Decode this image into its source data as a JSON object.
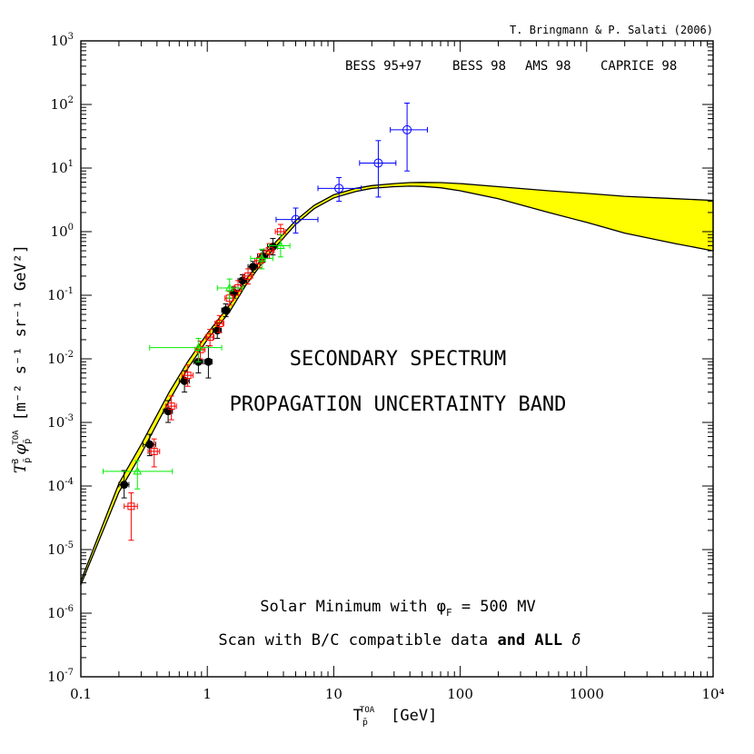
{
  "chart_data": {
    "type": "scatter",
    "credit": "T. Bringmann & P. Salati (2006)",
    "annotations": {
      "line1": "SECONDARY SPECTRUM",
      "line2": "PROPAGATION UNCERTAINTY BAND",
      "note1": "Solar Minimum with φ",
      "note1_sub": "F",
      "note1_rest": " = 500 MV",
      "note2": "Scan with B/C compatible data ",
      "note2_bold": "and ALL",
      "note2_end": " δ"
    },
    "xlabel": {
      "main": "T",
      "sub": "p̄",
      "sup": "TOA",
      "unit": "[GeV]"
    },
    "ylabel": {
      "main": "T",
      "sub": "p̄",
      "sup": "3",
      "phi": "φ",
      "phi_sub": "p̄",
      "phi_sup": "TOA",
      "unit": "[m⁻² s⁻¹ sr⁻¹ GeV²]"
    },
    "x_scale": "log",
    "y_scale": "log",
    "xlim": [
      0.1,
      10000
    ],
    "ylim": [
      1e-07,
      1000
    ],
    "x_tick_labels": [
      "0.1",
      "1",
      "10",
      "100",
      "1000",
      "10⁴"
    ],
    "x_tick_values": [
      0.1,
      1,
      10,
      100,
      1000,
      10000
    ],
    "y_tick_values": [
      1e-07,
      1e-06,
      1e-05,
      0.0001,
      0.001,
      0.01,
      0.1,
      1,
      10,
      100,
      1000
    ],
    "y_tick_mantissa": "10",
    "y_tick_exponents": [
      "-7",
      "-6",
      "-5",
      "-4",
      "-3",
      "-2",
      "-1",
      "0",
      "1",
      "2",
      "3"
    ],
    "legend_position": "top-right",
    "series": [
      {
        "name": "BESS 95+97",
        "color": "#000000",
        "marker": "filled-circle",
        "points": [
          {
            "x": 0.22,
            "y": 0.000105,
            "xerr": [
              0.02,
              0.02
            ],
            "yerr": [
              4e-05,
              7e-05
            ]
          },
          {
            "x": 0.35,
            "y": 0.00045,
            "xerr": [
              0.04,
              0.04
            ],
            "yerr": [
              0.00015,
              0.0002
            ]
          },
          {
            "x": 0.49,
            "y": 0.0015,
            "xerr": [
              0.04,
              0.04
            ],
            "yerr": [
              0.0005,
              0.0007
            ]
          },
          {
            "x": 0.66,
            "y": 0.0045,
            "xerr": [
              0.06,
              0.06
            ],
            "yerr": [
              0.0015,
              0.002
            ]
          },
          {
            "x": 0.85,
            "y": 0.009,
            "xerr": [
              0.07,
              0.07
            ],
            "yerr": [
              0.003,
              0.005
            ]
          },
          {
            "x": 1.02,
            "y": 0.009,
            "xerr": [
              0.07,
              0.07
            ],
            "yerr": [
              0.004,
              0.007
            ]
          },
          {
            "x": 1.2,
            "y": 0.028,
            "xerr": [
              0.09,
              0.09
            ],
            "yerr": [
              0.007,
              0.009
            ]
          },
          {
            "x": 1.4,
            "y": 0.058,
            "xerr": [
              0.1,
              0.1
            ],
            "yerr": [
              0.012,
              0.015
            ]
          },
          {
            "x": 1.62,
            "y": 0.11,
            "xerr": [
              0.12,
              0.12
            ],
            "yerr": [
              0.02,
              0.025
            ]
          },
          {
            "x": 1.9,
            "y": 0.17,
            "xerr": [
              0.15,
              0.15
            ],
            "yerr": [
              0.03,
              0.04
            ]
          },
          {
            "x": 2.3,
            "y": 0.28,
            "xerr": [
              0.2,
              0.2
            ],
            "yerr": [
              0.05,
              0.06
            ]
          },
          {
            "x": 2.75,
            "y": 0.41,
            "xerr": [
              0.25,
              0.25
            ],
            "yerr": [
              0.08,
              0.1
            ]
          },
          {
            "x": 3.3,
            "y": 0.58,
            "xerr": [
              0.3,
              0.3
            ],
            "yerr": [
              0.15,
              0.2
            ]
          }
        ]
      },
      {
        "name": "BESS 98",
        "color": "#ff0000",
        "marker": "open-square",
        "points": [
          {
            "x": 0.25,
            "y": 4.8e-05,
            "xerr": [
              0.03,
              0.03
            ],
            "yerr": [
              3.4e-05,
              3e-05
            ]
          },
          {
            "x": 0.38,
            "y": 0.00035,
            "xerr": [
              0.04,
              0.04
            ],
            "yerr": [
              0.00015,
              0.0002
            ]
          },
          {
            "x": 0.52,
            "y": 0.0018,
            "xerr": [
              0.05,
              0.05
            ],
            "yerr": [
              0.0007,
              0.0008
            ]
          },
          {
            "x": 0.7,
            "y": 0.0055,
            "xerr": [
              0.07,
              0.07
            ],
            "yerr": [
              0.0018,
              0.0025
            ]
          },
          {
            "x": 0.88,
            "y": 0.014,
            "xerr": [
              0.08,
              0.08
            ],
            "yerr": [
              0.004,
              0.005
            ]
          },
          {
            "x": 1.05,
            "y": 0.022,
            "xerr": [
              0.08,
              0.08
            ],
            "yerr": [
              0.006,
              0.007
            ]
          },
          {
            "x": 1.25,
            "y": 0.036,
            "xerr": [
              0.1,
              0.1
            ],
            "yerr": [
              0.01,
              0.012
            ]
          },
          {
            "x": 1.5,
            "y": 0.09,
            "xerr": [
              0.12,
              0.12
            ],
            "yerr": [
              0.02,
              0.025
            ]
          },
          {
            "x": 1.75,
            "y": 0.13,
            "xerr": [
              0.14,
              0.14
            ],
            "yerr": [
              0.03,
              0.04
            ]
          },
          {
            "x": 2.1,
            "y": 0.2,
            "xerr": [
              0.18,
              0.18
            ],
            "yerr": [
              0.05,
              0.06
            ]
          },
          {
            "x": 2.6,
            "y": 0.35,
            "xerr": [
              0.22,
              0.22
            ],
            "yerr": [
              0.08,
              0.1
            ]
          },
          {
            "x": 3.1,
            "y": 0.5,
            "xerr": [
              0.28,
              0.28
            ],
            "yerr": [
              0.12,
              0.15
            ]
          },
          {
            "x": 3.8,
            "y": 1.0,
            "xerr": [
              0.35,
              0.35
            ],
            "yerr": [
              0.25,
              0.3
            ]
          }
        ]
      },
      {
        "name": "AMS 98",
        "color": "#00ee00",
        "marker": "open-triangle",
        "points": [
          {
            "x": 0.28,
            "y": 0.00017,
            "xerr": [
              0.13,
              0.25
            ],
            "yerr": [
              8e-05,
              8e-05
            ]
          },
          {
            "x": 0.85,
            "y": 0.015,
            "xerr": [
              0.5,
              0.45
            ],
            "yerr": [
              0.006,
              0.006
            ]
          },
          {
            "x": 1.5,
            "y": 0.13,
            "xerr": [
              0.3,
              0.4
            ],
            "yerr": [
              0.04,
              0.05
            ]
          },
          {
            "x": 2.7,
            "y": 0.38,
            "xerr": [
              0.5,
              0.6
            ],
            "yerr": [
              0.12,
              0.15
            ]
          },
          {
            "x": 3.8,
            "y": 0.6,
            "xerr": [
              0.7,
              0.7
            ],
            "yerr": [
              0.2,
              0.3
            ]
          }
        ]
      },
      {
        "name": "CAPRICE 98",
        "color": "#0000ff",
        "marker": "open-circle",
        "points": [
          {
            "x": 5.0,
            "y": 1.55,
            "xerr": [
              1.5,
              2.5
            ],
            "yerr": [
              0.6,
              0.8
            ]
          },
          {
            "x": 11.0,
            "y": 4.8,
            "xerr": [
              3.5,
              5.5
            ],
            "yerr": [
              1.8,
              2.3
            ]
          },
          {
            "x": 22.5,
            "y": 12.0,
            "xerr": [
              6.5,
              8.5
            ],
            "yerr": [
              8.5,
              15.0
            ]
          },
          {
            "x": 38.0,
            "y": 40.0,
            "xerr": [
              10.0,
              17.0
            ],
            "yerr": [
              31.0,
              65.0
            ]
          }
        ]
      }
    ],
    "band": {
      "fill": "#ffff00",
      "x": [
        0.1,
        0.2,
        0.3,
        0.5,
        0.7,
        1.0,
        1.5,
        2.0,
        3.0,
        5.0,
        7.0,
        10.0,
        15.0,
        20.0,
        30.0,
        40.0,
        50.0,
        70.0,
        100.0,
        200.0,
        500.0,
        1000.0,
        2000.0,
        5000.0,
        10000.0
      ],
      "upper": [
        3.2e-06,
        0.00011,
        0.00045,
        0.003,
        0.009,
        0.025,
        0.07,
        0.17,
        0.5,
        1.5,
        2.6,
        3.8,
        4.8,
        5.3,
        5.7,
        5.9,
        5.95,
        5.9,
        5.7,
        5.1,
        4.4,
        4.0,
        3.6,
        3.3,
        3.1
      ],
      "lower": [
        2.8e-06,
        8e-05,
        0.00032,
        0.0022,
        0.007,
        0.02,
        0.055,
        0.14,
        0.42,
        1.3,
        2.3,
        3.4,
        4.3,
        4.8,
        5.1,
        5.2,
        5.15,
        4.9,
        4.4,
        3.3,
        2.0,
        1.4,
        0.95,
        0.65,
        0.5
      ]
    }
  }
}
